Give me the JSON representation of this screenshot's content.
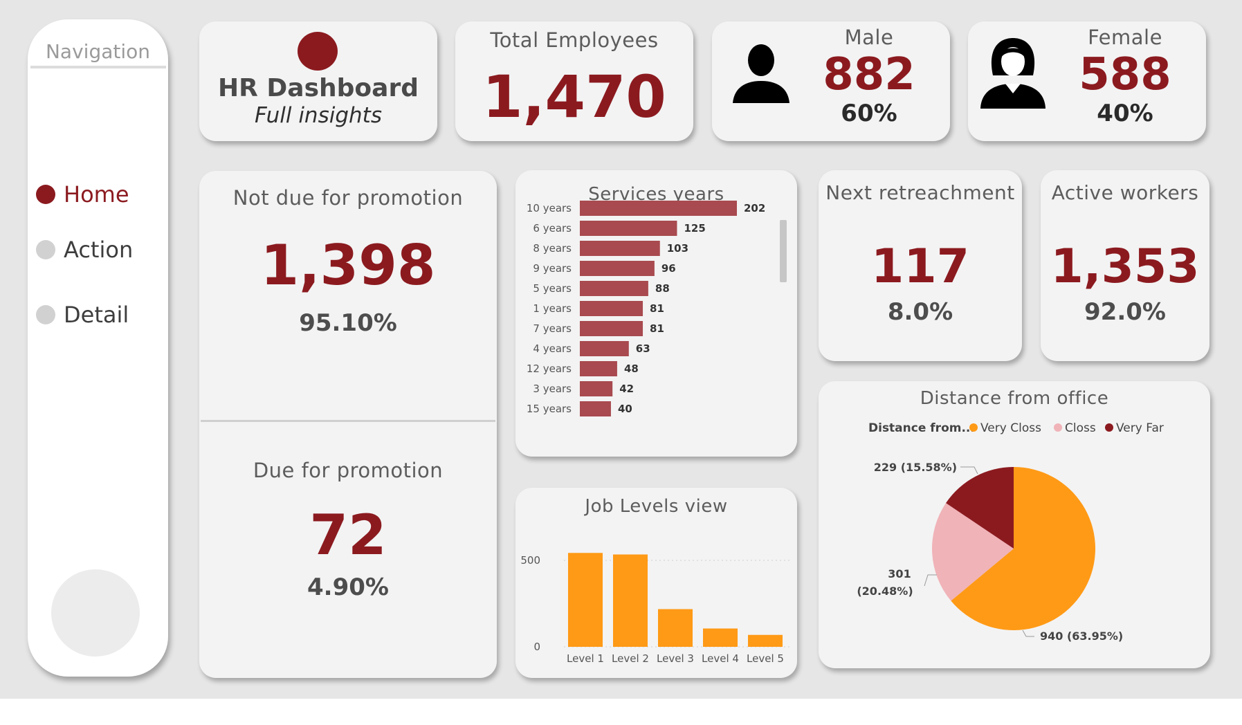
{
  "navigation": {
    "title": "Navigation",
    "items": [
      {
        "label": "Home",
        "active": true
      },
      {
        "label": "Action",
        "active": false
      },
      {
        "label": "Detail",
        "active": false
      }
    ]
  },
  "header": {
    "title": "HR Dashboard",
    "subtitle": "Full insights"
  },
  "total_employees": {
    "title": "Total Employees",
    "value": "1,470"
  },
  "male": {
    "title": "Male",
    "value": "882",
    "percent": "60%",
    "icon": "male-user-icon"
  },
  "female": {
    "title": "Female",
    "value": "588",
    "percent": "40%",
    "icon": "female-user-icon"
  },
  "not_due_promotion": {
    "title": "Not due for promotion",
    "value": "1,398",
    "percent": "95.10%"
  },
  "due_promotion": {
    "title": "Due for promotion",
    "value": "72",
    "percent": "4.90%"
  },
  "next_retrenchment": {
    "title": "Next retreachment",
    "value": "117",
    "percent": "8.0%"
  },
  "active_workers": {
    "title": "Active workers",
    "value": "1,353",
    "percent": "92.0%"
  },
  "colors": {
    "maroon": "#8b1a1f",
    "bar_red": "#a84a4f",
    "orange": "#ff9a16",
    "pink": "#f0b3b8"
  },
  "chart_data": [
    {
      "type": "bar",
      "orientation": "horizontal",
      "title": "Services years",
      "categories": [
        "10 years",
        "6 years",
        "8 years",
        "9 years",
        "5 years",
        "1 years",
        "7 years",
        "4 years",
        "12 years",
        "3 years",
        "15 years"
      ],
      "values": [
        202,
        125,
        103,
        96,
        88,
        81,
        81,
        63,
        48,
        42,
        40
      ],
      "data_labels": [
        "202",
        "125",
        "103",
        "96",
        "88",
        "81",
        "81",
        "63",
        "48",
        "42",
        "40"
      ],
      "scrollable": true
    },
    {
      "type": "bar",
      "title": "Job Levels view",
      "categories": [
        "Level 1",
        "Level 2",
        "Level 3",
        "Level 4",
        "Level 5"
      ],
      "values": [
        543,
        534,
        218,
        106,
        69
      ],
      "ylim": [
        0,
        560
      ],
      "yticks": [
        0,
        500
      ],
      "ytick_labels": [
        "0",
        "500"
      ],
      "grid": true
    },
    {
      "type": "pie",
      "title": "Distance from office",
      "legend_title": "Distance from...",
      "legend_position": "top",
      "slices": [
        {
          "name": "Very Closs",
          "value": 940,
          "label": "940 (63.95%)",
          "color": "#ff9a16"
        },
        {
          "name": "Closs",
          "value": 301,
          "label_line1": "301",
          "label_line2": "(20.48%)",
          "color": "#f0b3b8"
        },
        {
          "name": "Very Far",
          "value": 229,
          "label": "229 (15.58%)",
          "color": "#8b1a1f"
        }
      ]
    }
  ]
}
